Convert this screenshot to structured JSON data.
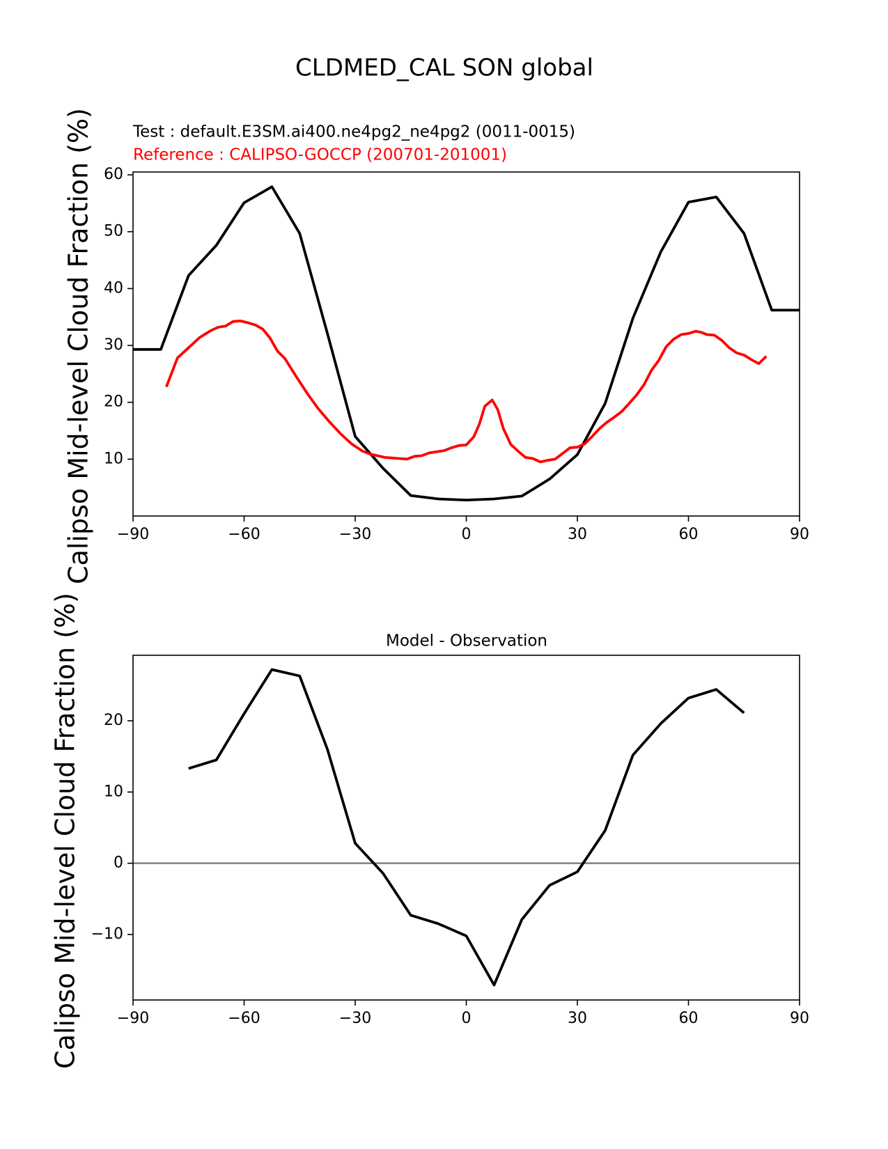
{
  "figure": {
    "title": "CLDMED_CAL SON global"
  },
  "top_panel": {
    "test_label": "Test : default.E3SM.ai400.ne4pg2_ne4pg2 (0011-0015)",
    "reference_label": "Reference : CALIPSO-GOCCP (200701-201001)",
    "ylabel": "Calipso Mid-level Cloud Fraction (%)"
  },
  "bottom_panel": {
    "title": "Model - Observation",
    "ylabel": "Calipso Mid-level Cloud Fraction (%)"
  },
  "colors": {
    "test": "#000000",
    "reference": "#ff0000",
    "zero_line": "#808080",
    "axes": "#000000"
  },
  "chart_data": [
    {
      "type": "line",
      "title": "",
      "xlabel": "",
      "ylabel": "Calipso Mid-level Cloud Fraction (%)",
      "xlim": [
        -90,
        90
      ],
      "ylim": [
        0,
        60.5
      ],
      "xticks": [
        -90,
        -60,
        -30,
        0,
        30,
        60,
        90
      ],
      "xtick_labels": [
        "−90",
        "−60",
        "−30",
        "0",
        "30",
        "60",
        "90"
      ],
      "yticks": [
        10,
        20,
        30,
        40,
        50,
        60
      ],
      "ytick_labels": [
        "10",
        "20",
        "30",
        "40",
        "50",
        "60"
      ],
      "grid": false,
      "series": [
        {
          "role": "test",
          "color": "#000000",
          "x": [
            -90,
            -82.5,
            -75,
            -67.5,
            -60,
            -52.5,
            -45,
            -37.5,
            -30,
            -22.5,
            -15,
            -7.5,
            0,
            7.5,
            15,
            22.5,
            30,
            37.5,
            45,
            52.5,
            60,
            67.5,
            75,
            82.5,
            90
          ],
          "y": [
            29.3,
            29.3,
            42.3,
            47.6,
            55.1,
            57.9,
            49.7,
            32.1,
            14.0,
            8.4,
            3.6,
            3.0,
            2.8,
            3.0,
            3.5,
            6.5,
            10.8,
            19.8,
            34.8,
            46.4,
            55.2,
            56.1,
            49.7,
            36.2,
            36.2
          ]
        },
        {
          "role": "reference",
          "color": "#ff0000",
          "x": [
            -81,
            -78,
            -75,
            -72,
            -69,
            -67,
            -65,
            -63,
            -61,
            -59,
            -57,
            -55,
            -53,
            -51,
            -49,
            -46,
            -43,
            -40,
            -37,
            -34,
            -31,
            -28,
            -26,
            -24,
            -22,
            -20,
            -18,
            -16,
            -14,
            -12,
            -10,
            -8,
            -6,
            -4,
            -2,
            0,
            2,
            3.5,
            5,
            7,
            8.5,
            10,
            12,
            14,
            16,
            18,
            20,
            22,
            24,
            26,
            28,
            30,
            32,
            34,
            36,
            38,
            40,
            42,
            44,
            46,
            48,
            50,
            52,
            54,
            56,
            58,
            60,
            62,
            63.5,
            65,
            67,
            69,
            71,
            73,
            75,
            77,
            79,
            81
          ],
          "y": [
            22.7,
            27.8,
            29.6,
            31.4,
            32.6,
            33.2,
            33.4,
            34.2,
            34.3,
            34.0,
            33.6,
            32.9,
            31.3,
            29.0,
            27.7,
            24.6,
            21.6,
            18.9,
            16.6,
            14.5,
            12.7,
            11.4,
            10.9,
            10.6,
            10.3,
            10.2,
            10.1,
            10.0,
            10.5,
            10.6,
            11.1,
            11.3,
            11.5,
            12.0,
            12.4,
            12.5,
            13.9,
            16.1,
            19.3,
            20.4,
            18.7,
            15.4,
            12.6,
            11.4,
            10.3,
            10.1,
            9.5,
            9.8,
            10.0,
            11.0,
            12.0,
            12.1,
            12.7,
            14.0,
            15.4,
            16.5,
            17.4,
            18.4,
            19.8,
            21.3,
            23.1,
            25.6,
            27.4,
            29.8,
            31.1,
            31.9,
            32.1,
            32.5,
            32.3,
            31.9,
            31.8,
            30.9,
            29.6,
            28.7,
            28.3,
            27.5,
            26.8,
            28.1
          ]
        }
      ]
    },
    {
      "type": "line",
      "title": "Model - Observation",
      "xlabel": "",
      "ylabel": "Calipso Mid-level Cloud Fraction (%)",
      "xlim": [
        -90,
        90
      ],
      "ylim": [
        -19.2,
        29.2
      ],
      "xticks": [
        -90,
        -60,
        -30,
        0,
        30,
        60,
        90
      ],
      "xtick_labels": [
        "−90",
        "−60",
        "−30",
        "0",
        "30",
        "60",
        "90"
      ],
      "yticks": [
        -10,
        0,
        10,
        20
      ],
      "ytick_labels": [
        "−10",
        "0",
        "10",
        "20"
      ],
      "zero_line": true,
      "grid": false,
      "series": [
        {
          "role": "difference",
          "color": "#000000",
          "x": [
            -75,
            -67.5,
            -60,
            -52.5,
            -45,
            -37.5,
            -30,
            -22.5,
            -15,
            -7.5,
            0,
            7.5,
            15,
            22.5,
            30,
            37.5,
            45,
            52.5,
            60,
            67.5,
            75
          ],
          "y": [
            13.3,
            14.5,
            21.0,
            27.2,
            26.3,
            16.0,
            2.8,
            -1.4,
            -7.3,
            -8.5,
            -10.2,
            -17.1,
            -7.9,
            -3.1,
            -1.2,
            4.6,
            15.2,
            19.6,
            23.2,
            24.4,
            21.1
          ]
        }
      ]
    }
  ]
}
